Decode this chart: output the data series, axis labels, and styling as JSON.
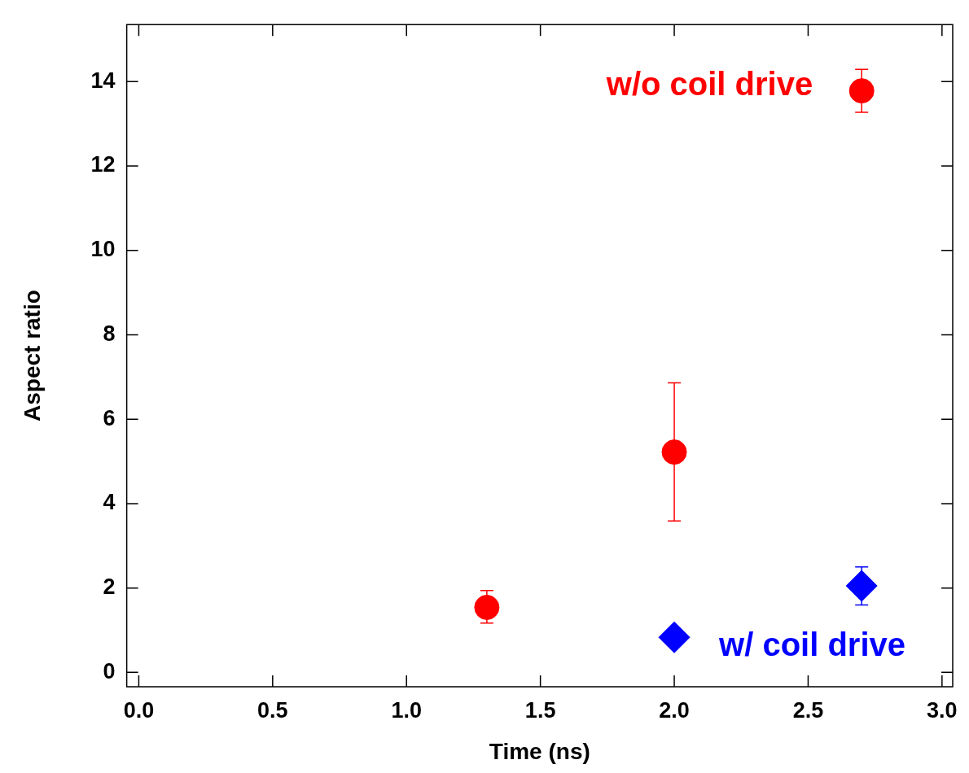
{
  "chart_data": {
    "type": "scatter",
    "xlabel": "Time (ns)",
    "ylabel": "Aspect ratio",
    "xlim": [
      -0.045,
      3.04
    ],
    "ylim": [
      -0.34,
      15.35
    ],
    "xticks": [
      {
        "value": 0,
        "label": "0.0"
      },
      {
        "value": 0.5,
        "label": "0.5"
      },
      {
        "value": 1,
        "label": "1.0"
      },
      {
        "value": 1.5,
        "label": "1.5"
      },
      {
        "value": 2,
        "label": "2.0"
      },
      {
        "value": 2.5,
        "label": "2.5"
      },
      {
        "value": 3,
        "label": "3.0"
      }
    ],
    "yticks": [
      0,
      2,
      4,
      6,
      8,
      10,
      12,
      14
    ],
    "grid": false,
    "legend": false,
    "series": [
      {
        "name": "w/o coil drive",
        "color": "#ff0000",
        "marker": "circle",
        "x": [
          1.3,
          2.0,
          2.7
        ],
        "values": [
          1.54,
          5.22,
          13.78
        ],
        "errors": [
          [
            1.17,
            1.94
          ],
          [
            3.59,
            6.86
          ],
          [
            13.27,
            14.29
          ]
        ]
      },
      {
        "name": "w/ coil drive",
        "color": "#0000ff",
        "marker": "diamond",
        "x": [
          2.0,
          2.7
        ],
        "values": [
          0.83,
          2.05
        ],
        "errors": [
          null,
          [
            1.6,
            2.5
          ]
        ]
      }
    ]
  }
}
